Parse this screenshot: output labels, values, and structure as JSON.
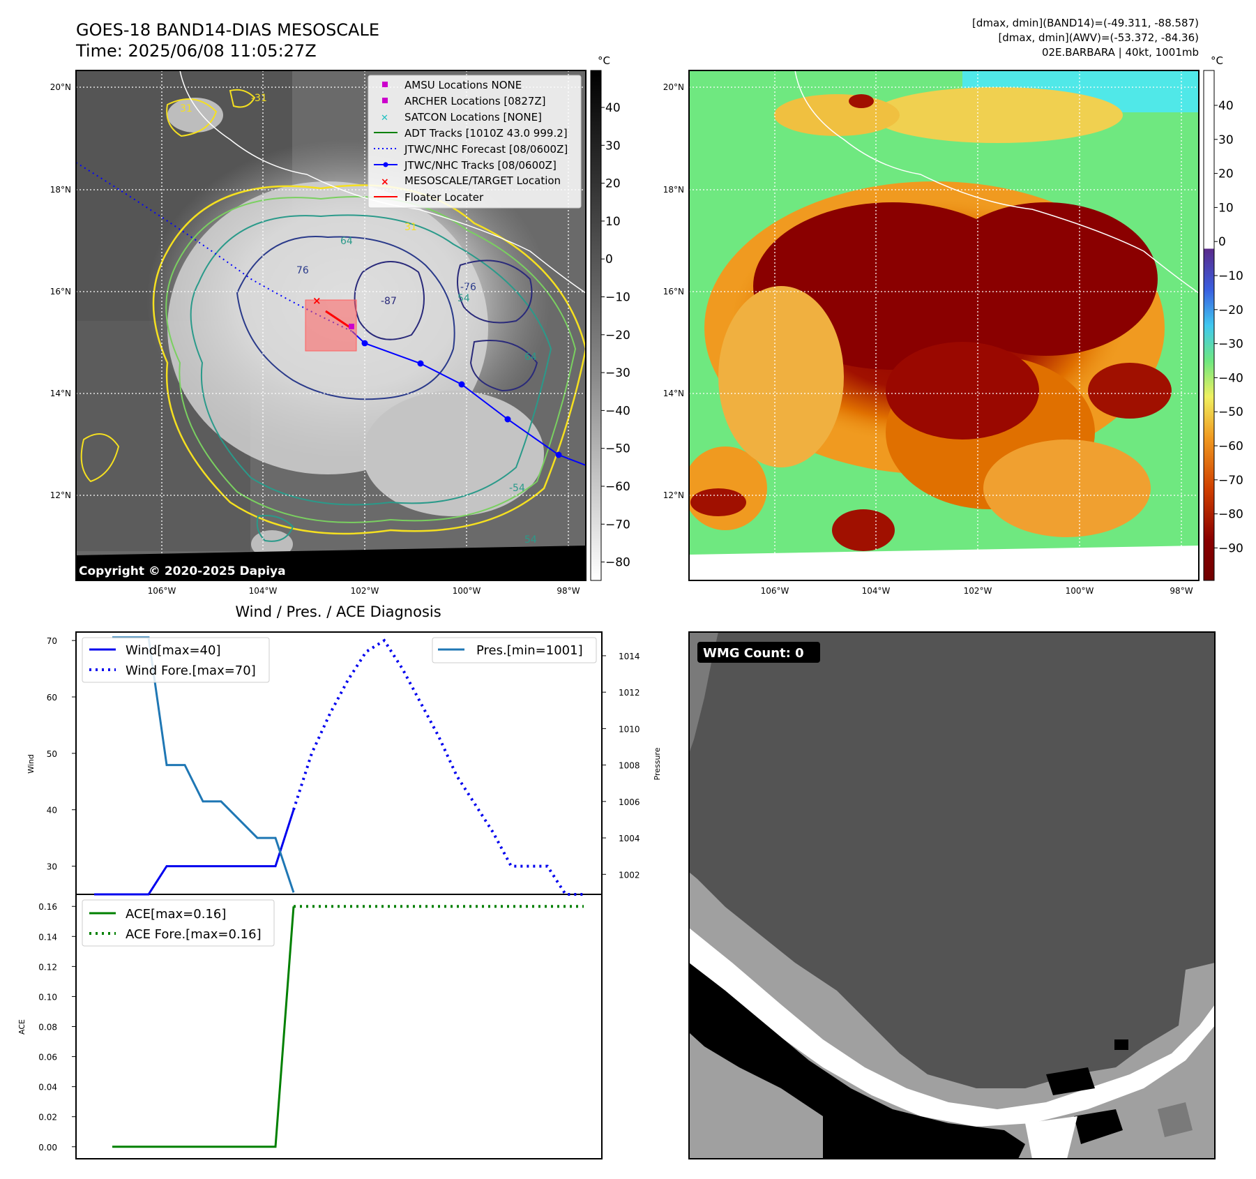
{
  "header": {
    "title_line1": "GOES-18 BAND14-DIAS MESOSCALE",
    "title_line2": "Time: 2025/06/08 11:05:27Z",
    "stats_line1": "[dmax, dmin](BAND14)=(-49.311, -88.587)",
    "stats_line2": "[dmax, dmin](AWV)=(-53.372, -84.36)",
    "stats_line3": "02E.BARBARA | 40kt, 1001mb"
  },
  "map_axes": {
    "lon_labels": [
      "106°W",
      "104°W",
      "102°W",
      "100°W",
      "98°W"
    ],
    "lat_labels": [
      "20°N",
      "18°N",
      "16°N",
      "14°N",
      "12°N"
    ],
    "copyright": "Copyright © 2020-2025 Dapiya",
    "contour_labels": [
      "31",
      "31",
      "-31",
      "64",
      "76",
      "-76",
      "-87",
      "54",
      "-54",
      "64",
      "54"
    ]
  },
  "ir_colorbar": {
    "unit": "°C",
    "ticks": [
      "40",
      "30",
      "20",
      "10",
      "0",
      "−10",
      "−20",
      "−30",
      "−40",
      "−50",
      "−60",
      "−70",
      "−80"
    ]
  },
  "awv_colorbar": {
    "unit": "°C",
    "ticks": [
      "40",
      "30",
      "20",
      "10",
      "0",
      "−10",
      "−20",
      "−30",
      "−40",
      "−50",
      "−60",
      "−70",
      "−80",
      "−90"
    ]
  },
  "map_legend": [
    {
      "label": "AMSU Locations NONE",
      "symbol": "square",
      "color": "#cc00cc"
    },
    {
      "label": "ARCHER Locations [0827Z]",
      "symbol": "square",
      "color": "#cc00cc"
    },
    {
      "label": "SATCON Locations [NONE]",
      "symbol": "cross",
      "color": "#20c0c0"
    },
    {
      "label": "ADT Tracks [1010Z 43.0 999.2]",
      "symbol": "line",
      "color": "#008000"
    },
    {
      "label": "JTWC/NHC Forecast [08/0600Z]",
      "symbol": "dotted",
      "color": "#0000ff"
    },
    {
      "label": "JTWC/NHC Tracks [08/0600Z]",
      "symbol": "line-dot",
      "color": "#0000ff"
    },
    {
      "label": "MESOSCALE/TARGET Location",
      "symbol": "x",
      "color": "#ff0000"
    },
    {
      "label": "Floater Locater",
      "symbol": "line",
      "color": "#ff0000"
    }
  ],
  "diag_title": "Wind / Pres. / ACE Diagnosis",
  "wmg_label": "WMG Count: 0",
  "chart_data": [
    {
      "type": "line",
      "title": "Wind / Pres. / ACE Diagnosis",
      "ylabel": "Wind",
      "y2label": "Pressure",
      "ylim": [
        25,
        71.5
      ],
      "y2lim": [
        1000.9,
        1015.3
      ],
      "yticks": [
        "30",
        "40",
        "50",
        "60",
        "70"
      ],
      "y2ticks": [
        "1002",
        "1004",
        "1006",
        "1008",
        "1010",
        "1012",
        "1014"
      ],
      "series": [
        {
          "name": "Wind[max=40]",
          "axis": "left",
          "style": "solid",
          "color": "#0000ee",
          "x": [
            0,
            1,
            2,
            3,
            4,
            5,
            6,
            7,
            8,
            9,
            10,
            11
          ],
          "values": [
            25,
            25,
            25,
            25,
            30,
            30,
            30,
            30,
            30,
            30,
            30,
            40
          ]
        },
        {
          "name": "Wind Fore.[max=70]",
          "axis": "left",
          "style": "dotted",
          "color": "#0000ee",
          "x": [
            11,
            12,
            13,
            14,
            15,
            16,
            17,
            18,
            19,
            20,
            21,
            22,
            23,
            24,
            25,
            26,
            27
          ],
          "values": [
            40,
            50,
            57,
            63,
            68,
            70,
            65,
            59,
            53,
            46,
            41,
            36,
            30,
            30,
            30,
            25,
            25
          ]
        },
        {
          "name": "Pres.[min=1001]",
          "axis": "right",
          "style": "solid",
          "color": "#1f77b4",
          "x": [
            1,
            2,
            3,
            4,
            5,
            6,
            7,
            8,
            9,
            10,
            11
          ],
          "values": [
            1015,
            1015,
            1015,
            1008,
            1008,
            1006,
            1006,
            1005,
            1004,
            1004,
            1001
          ]
        }
      ]
    },
    {
      "type": "line",
      "ylabel": "ACE",
      "ylim": [
        -0.008,
        0.168
      ],
      "yticks": [
        "0.00",
        "0.02",
        "0.04",
        "0.06",
        "0.08",
        "0.10",
        "0.12",
        "0.14",
        "0.16"
      ],
      "series": [
        {
          "name": "ACE[max=0.16]",
          "style": "solid",
          "color": "#008000",
          "x": [
            1,
            2,
            3,
            4,
            5,
            6,
            7,
            8,
            9,
            10,
            11
          ],
          "values": [
            0,
            0,
            0,
            0,
            0,
            0,
            0,
            0,
            0,
            0,
            0.16
          ]
        },
        {
          "name": "ACE Fore.[max=0.16]",
          "style": "dotted",
          "color": "#008000",
          "x": [
            11,
            27
          ],
          "values": [
            0.16,
            0.16
          ]
        }
      ]
    }
  ]
}
